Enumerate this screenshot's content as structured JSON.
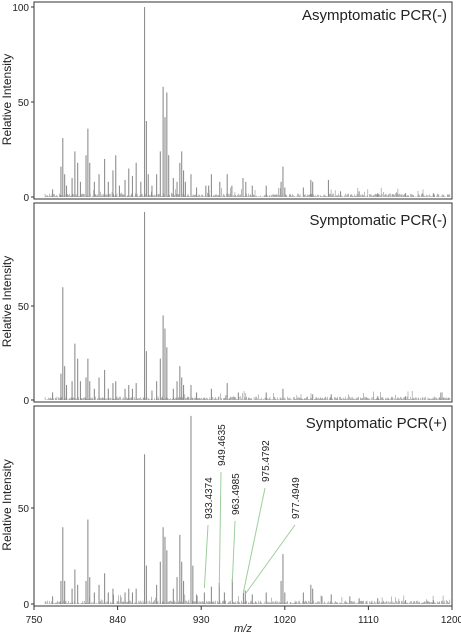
{
  "chart_data": [
    {
      "type": "line",
      "title": "Asymptomatic PCR(-)",
      "ylabel": "Relative Intensity",
      "ylim": [
        0,
        100
      ],
      "yticks": [
        "0",
        "50",
        "100"
      ],
      "xlim": [
        750,
        1200
      ],
      "peaks": [
        [
          770,
          4
        ],
        [
          779,
          16
        ],
        [
          781,
          31
        ],
        [
          783,
          12
        ],
        [
          785,
          6
        ],
        [
          791,
          10
        ],
        [
          794,
          24
        ],
        [
          797,
          18
        ],
        [
          800,
          8
        ],
        [
          806,
          22
        ],
        [
          808,
          36
        ],
        [
          810,
          18
        ],
        [
          815,
          8
        ],
        [
          820,
          12
        ],
        [
          826,
          20
        ],
        [
          830,
          8
        ],
        [
          835,
          14
        ],
        [
          838,
          22
        ],
        [
          842,
          6
        ],
        [
          848,
          9
        ],
        [
          852,
          15
        ],
        [
          856,
          11
        ],
        [
          860,
          18
        ],
        [
          865,
          8
        ],
        [
          869,
          100
        ],
        [
          871,
          40
        ],
        [
          873,
          12
        ],
        [
          877,
          6
        ],
        [
          882,
          12
        ],
        [
          886,
          24
        ],
        [
          889,
          58
        ],
        [
          891,
          42
        ],
        [
          893,
          55
        ],
        [
          895,
          22
        ],
        [
          900,
          10
        ],
        [
          904,
          8
        ],
        [
          907,
          18
        ],
        [
          909,
          24
        ],
        [
          911,
          14
        ],
        [
          913,
          8
        ],
        [
          919,
          12
        ],
        [
          925,
          5
        ],
        [
          935,
          6
        ],
        [
          938,
          6
        ],
        [
          941,
          12
        ],
        [
          950,
          8
        ],
        [
          958,
          12
        ],
        [
          963,
          6
        ],
        [
          975,
          10
        ],
        [
          978,
          8
        ],
        [
          985,
          6
        ],
        [
          1000,
          6
        ],
        [
          1016,
          8
        ],
        [
          1018,
          16
        ],
        [
          1020,
          5
        ],
        [
          1040,
          5
        ],
        [
          1048,
          9
        ],
        [
          1050,
          8
        ],
        [
          1067,
          9
        ],
        [
          1080,
          3
        ],
        [
          1100,
          3
        ],
        [
          1120,
          2
        ],
        [
          1150,
          2
        ],
        [
          1180,
          2
        ]
      ]
    },
    {
      "type": "line",
      "title": "Symptomatic PCR(-)",
      "ylabel": "Relative Intensity",
      "ylim": [
        0,
        100
      ],
      "yticks": [
        "0",
        "50"
      ],
      "xlim": [
        750,
        1200
      ],
      "peaks": [
        [
          770,
          4
        ],
        [
          779,
          14
        ],
        [
          781,
          60
        ],
        [
          783,
          18
        ],
        [
          785,
          8
        ],
        [
          791,
          10
        ],
        [
          794,
          30
        ],
        [
          797,
          22
        ],
        [
          800,
          10
        ],
        [
          806,
          12
        ],
        [
          808,
          22
        ],
        [
          810,
          10
        ],
        [
          815,
          6
        ],
        [
          820,
          12
        ],
        [
          826,
          16
        ],
        [
          830,
          6
        ],
        [
          835,
          9
        ],
        [
          838,
          10
        ],
        [
          848,
          6
        ],
        [
          852,
          8
        ],
        [
          856,
          6
        ],
        [
          860,
          9
        ],
        [
          869,
          100
        ],
        [
          871,
          26
        ],
        [
          877,
          5
        ],
        [
          882,
          10
        ],
        [
          886,
          22
        ],
        [
          889,
          45
        ],
        [
          891,
          38
        ],
        [
          893,
          28
        ],
        [
          900,
          6
        ],
        [
          904,
          10
        ],
        [
          907,
          18
        ],
        [
          909,
          12
        ],
        [
          911,
          8
        ],
        [
          919,
          8
        ],
        [
          925,
          4
        ],
        [
          941,
          6
        ],
        [
          958,
          9
        ],
        [
          970,
          4
        ],
        [
          1000,
          4
        ],
        [
          1018,
          6
        ],
        [
          1050,
          3
        ],
        [
          1070,
          3
        ],
        [
          1120,
          2
        ],
        [
          1150,
          2
        ],
        [
          1188,
          4
        ]
      ]
    },
    {
      "type": "line",
      "title": "Symptomatic PCR(+)",
      "ylabel": "Relative Intensity",
      "ylim": [
        0,
        100
      ],
      "yticks": [
        "0",
        "50"
      ],
      "xlim": [
        750,
        1200
      ],
      "xticks": [
        "750",
        "840",
        "930",
        "1020",
        "1110",
        "1200"
      ],
      "xlabel": "m/z",
      "peaks": [
        [
          770,
          4
        ],
        [
          779,
          12
        ],
        [
          781,
          40
        ],
        [
          783,
          12
        ],
        [
          791,
          8
        ],
        [
          794,
          18
        ],
        [
          797,
          10
        ],
        [
          806,
          12
        ],
        [
          808,
          44
        ],
        [
          810,
          14
        ],
        [
          815,
          6
        ],
        [
          820,
          10
        ],
        [
          826,
          16
        ],
        [
          830,
          6
        ],
        [
          835,
          8
        ],
        [
          848,
          6
        ],
        [
          852,
          8
        ],
        [
          856,
          6
        ],
        [
          860,
          8
        ],
        [
          869,
          78
        ],
        [
          871,
          20
        ],
        [
          882,
          10
        ],
        [
          886,
          22
        ],
        [
          889,
          40
        ],
        [
          891,
          35
        ],
        [
          893,
          28
        ],
        [
          900,
          8
        ],
        [
          904,
          14
        ],
        [
          907,
          36
        ],
        [
          909,
          22
        ],
        [
          911,
          12
        ],
        [
          919,
          98
        ],
        [
          921,
          20
        ],
        [
          925,
          5
        ],
        [
          933.4374,
          6
        ],
        [
          941,
          9
        ],
        [
          949.4635,
          11
        ],
        [
          955,
          6
        ],
        [
          963.4985,
          13
        ],
        [
          975.4792,
          6
        ],
        [
          977.4949,
          7
        ],
        [
          985,
          5
        ],
        [
          1000,
          6
        ],
        [
          1016,
          12
        ],
        [
          1018,
          26
        ],
        [
          1020,
          6
        ],
        [
          1040,
          6
        ],
        [
          1048,
          10
        ],
        [
          1050,
          8
        ],
        [
          1060,
          4
        ],
        [
          1070,
          5
        ],
        [
          1090,
          4
        ],
        [
          1100,
          3
        ],
        [
          1120,
          3
        ],
        [
          1150,
          2
        ],
        [
          1180,
          2
        ]
      ],
      "annotations": [
        {
          "text": "933.4374",
          "x": 933.4374
        },
        {
          "text": "949.4635",
          "x": 949.4635
        },
        {
          "text": "963.4985",
          "x": 963.4985
        },
        {
          "text": "975.4792",
          "x": 975.4792
        },
        {
          "text": "977.4949",
          "x": 977.4949
        }
      ],
      "annotation_color": "#9ccf9c"
    }
  ],
  "colors": {
    "spectrum": "#8f8f8f",
    "axis": "#333333",
    "annotation": "#9ccf9c"
  }
}
